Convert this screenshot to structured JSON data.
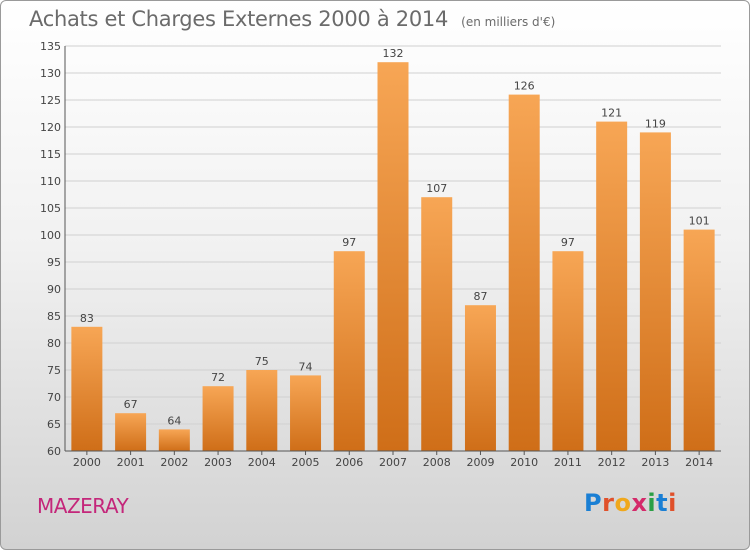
{
  "header": {
    "title": "Achats et Charges Externes 2000 à 2014",
    "unit": "(en milliers d'€)"
  },
  "place_name": "MAZERAY",
  "logo": {
    "text": "Proxiti",
    "letter_colors": [
      "#1a7fd4",
      "#e0502a",
      "#f0a81c",
      "#d42a6a",
      "#2a9f45",
      "#1a7fd4",
      "#e0502a"
    ]
  },
  "colors": {
    "bar_top": "#f7a655",
    "bar_bottom": "#cf6e18",
    "grid": "#d0d0d0",
    "axis": "#555555"
  },
  "chart_data": {
    "type": "bar",
    "title": "Achats et Charges Externes 2000 à 2014",
    "categories": [
      "2000",
      "2001",
      "2002",
      "2003",
      "2004",
      "2005",
      "2006",
      "2007",
      "2008",
      "2009",
      "2010",
      "2011",
      "2012",
      "2013",
      "2014"
    ],
    "values": [
      83,
      67,
      64,
      72,
      75,
      74,
      97,
      132,
      107,
      87,
      126,
      97,
      121,
      119,
      101
    ],
    "ylim": [
      60,
      135
    ],
    "yticks": [
      60,
      65,
      70,
      75,
      80,
      85,
      90,
      95,
      100,
      105,
      110,
      115,
      120,
      125,
      130,
      135
    ],
    "grid": true,
    "xlabel": "",
    "ylabel": ""
  }
}
